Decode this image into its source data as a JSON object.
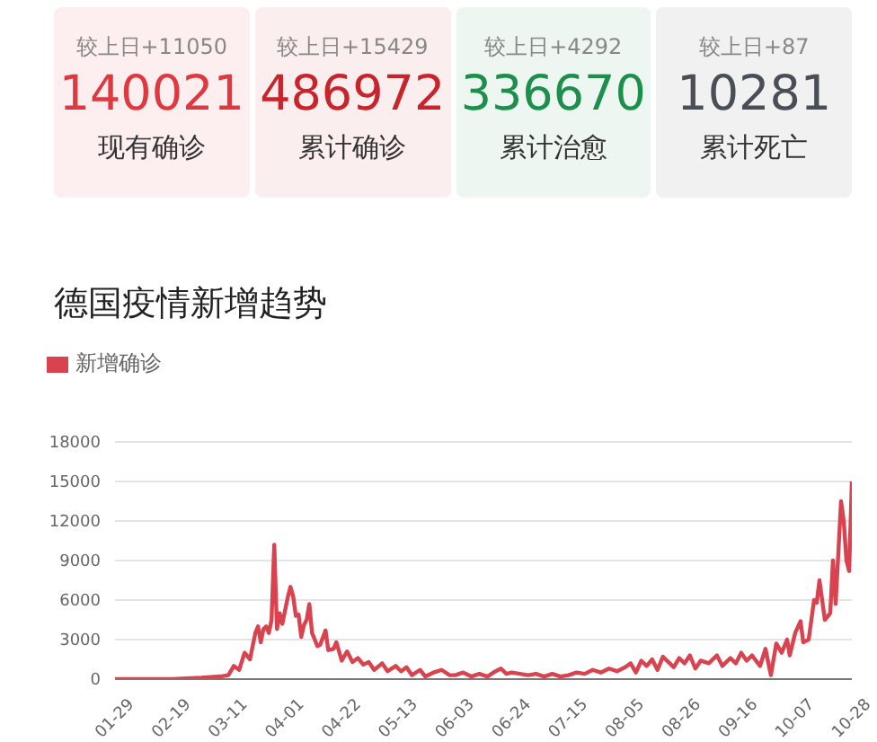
{
  "chart_data": [
    {
      "type": "other",
      "categories": [
        "现有确诊",
        "累计确诊",
        "累计治愈",
        "累计死亡"
      ],
      "values": [
        140021,
        486972,
        336670,
        10281
      ],
      "colors": [
        "#e0383f",
        "#c8242c",
        "#1d8f4c",
        "#4a4e56"
      ],
      "data_labels": true,
      "annotations": [
        "较上日+11050",
        "较上日+15429",
        "较上日+4292",
        "较上日+87"
      ]
    },
    {
      "type": "line",
      "title": "德国疫情新增趋势",
      "legend": "top left",
      "grid": "y",
      "marker": "none",
      "line_style": "solid",
      "xlim": [
        "--01-29",
        "--10-28"
      ],
      "xticks": [
        {
          "value": "--01-29",
          "label": "01-29"
        },
        {
          "value": "--02-19",
          "label": "02-19"
        },
        {
          "value": "--03-11",
          "label": "03-11"
        },
        {
          "value": "--04-01",
          "label": "04-01"
        },
        {
          "value": "--04-22",
          "label": "04-22"
        },
        {
          "value": "--05-13",
          "label": "05-13"
        },
        {
          "value": "--06-03",
          "label": "06-03"
        },
        {
          "value": "--06-24",
          "label": "06-24"
        },
        {
          "value": "--07-15",
          "label": "07-15"
        },
        {
          "value": "--08-05",
          "label": "08-05"
        },
        {
          "value": "--08-26",
          "label": "08-26"
        },
        {
          "value": "--09-16",
          "label": "09-16"
        },
        {
          "value": "--10-07",
          "label": "10-07"
        },
        {
          "value": "--10-28",
          "label": "10-28"
        }
      ],
      "ylim": [
        0,
        18000
      ],
      "yticks": [
        0,
        3000,
        6000,
        9000,
        12000,
        15000,
        18000
      ],
      "x": [
        "--01-29",
        "--02-19",
        "--03-01",
        "--03-08",
        "--03-11",
        "--03-13",
        "--03-15",
        "--03-17",
        "--03-19",
        "--03-21",
        "--03-22",
        "--03-23",
        "--03-24",
        "--03-25",
        "--03-26",
        "--03-27",
        "--03-28",
        "--03-29",
        "--03-30",
        "--03-31",
        "--04-02",
        "--04-03",
        "--04-04",
        "--04-05",
        "--04-06",
        "--04-07",
        "--04-08",
        "--04-09",
        "--04-10",
        "--04-11",
        "--04-12",
        "--04-13",
        "--04-14",
        "--04-16",
        "--04-17",
        "--04-19",
        "--04-20",
        "--04-22",
        "--04-24",
        "--04-26",
        "--04-28",
        "--04-30",
        "--05-02",
        "--05-04",
        "--05-07",
        "--05-09",
        "--05-12",
        "--05-14",
        "--05-16",
        "--05-18",
        "--05-21",
        "--05-23",
        "--05-26",
        "--05-29",
        "--06-01",
        "--06-03",
        "--06-06",
        "--06-09",
        "--06-12",
        "--06-15",
        "--06-18",
        "--06-20",
        "--06-22",
        "--06-24",
        "--06-27",
        "--06-30",
        "--07-03",
        "--07-06",
        "--07-09",
        "--07-12",
        "--07-15",
        "--07-18",
        "--07-21",
        "--07-24",
        "--07-27",
        "--07-30",
        "--08-02",
        "--08-05",
        "--08-07",
        "--08-09",
        "--08-11",
        "--08-13",
        "--08-15",
        "--08-17",
        "--08-19",
        "--08-21",
        "--08-23",
        "--08-25",
        "--08-27",
        "--08-29",
        "--08-31",
        "--09-02",
        "--09-05",
        "--09-08",
        "--09-10",
        "--09-13",
        "--09-15",
        "--09-17",
        "--09-19",
        "--09-21",
        "--09-24",
        "--09-26",
        "--09-28",
        "--09-30",
        "--10-02",
        "--10-04",
        "--10-05",
        "--10-07",
        "--10-09",
        "--10-10",
        "--10-12",
        "--10-14",
        "--10-15",
        "--10-16",
        "--10-18",
        "--10-20",
        "--10-21",
        "--10-22",
        "--10-24",
        "--10-25",
        "--10-26",
        "--10-27",
        "--10-28"
      ],
      "series": [
        {
          "name": "新增确诊",
          "color": "#d9434f",
          "values": [
            0,
            0,
            100,
            200,
            300,
            1000,
            700,
            2000,
            1500,
            3500,
            4000,
            2800,
            3800,
            4000,
            3500,
            4500,
            10200,
            3800,
            5000,
            4200,
            6200,
            7000,
            6300,
            4800,
            4900,
            3200,
            4100,
            4500,
            5700,
            3500,
            3000,
            2500,
            2600,
            3700,
            2200,
            2300,
            2800,
            1400,
            2100,
            1300,
            1600,
            1100,
            1300,
            700,
            1200,
            600,
            1000,
            600,
            900,
            300,
            700,
            200,
            500,
            700,
            300,
            300,
            500,
            200,
            400,
            200,
            600,
            800,
            400,
            500,
            400,
            300,
            400,
            200,
            400,
            200,
            300,
            500,
            400,
            700,
            500,
            800,
            600,
            900,
            1200,
            500,
            1400,
            1000,
            1500,
            700,
            1700,
            1300,
            900,
            1600,
            1200,
            1800,
            800,
            1400,
            1200,
            1800,
            1000,
            1600,
            1200,
            2000,
            1400,
            1800,
            1000,
            2300,
            300,
            2700,
            2000,
            3000,
            1800,
            3500,
            4400,
            2800,
            3000,
            6000,
            5800,
            7500,
            4500,
            5000,
            9000,
            5700,
            13500,
            12000,
            9000,
            8200,
            15000
          ]
        }
      ]
    }
  ]
}
